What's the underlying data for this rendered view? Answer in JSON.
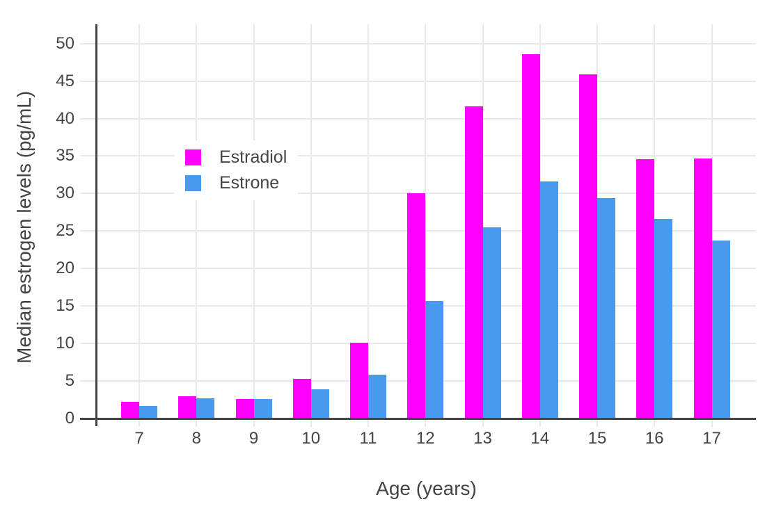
{
  "chart_data": {
    "type": "bar",
    "title": "",
    "categories": [
      "7",
      "8",
      "9",
      "10",
      "11",
      "12",
      "13",
      "14",
      "15",
      "16",
      "17"
    ],
    "series": [
      {
        "name": "Estradiol",
        "color": "#ff00ff",
        "values": [
          2.2,
          3.0,
          2.6,
          5.3,
          10.1,
          30.0,
          41.6,
          48.6,
          45.9,
          34.6,
          34.7
        ]
      },
      {
        "name": "Estrone",
        "color": "#489aee",
        "values": [
          1.7,
          2.7,
          2.6,
          3.9,
          5.8,
          15.7,
          25.5,
          31.6,
          29.4,
          26.6,
          23.7
        ]
      }
    ],
    "xlabel": "Age (years)",
    "ylabel": "Median estrogen levels (pg/mL)",
    "ylim": [
      0,
      52.5
    ],
    "yticks": [
      "0",
      "5",
      "10",
      "15",
      "20",
      "25",
      "30",
      "35",
      "40",
      "45",
      "50"
    ],
    "grid": true,
    "legend_position": "inside-top-left",
    "bar_mode": "grouped"
  },
  "colors": {
    "background": "#ffffff",
    "grid": "#e9e9e9",
    "axis": "#444444",
    "text": "#444444",
    "estradiol": "#ff00ff",
    "estrone": "#489aee"
  }
}
